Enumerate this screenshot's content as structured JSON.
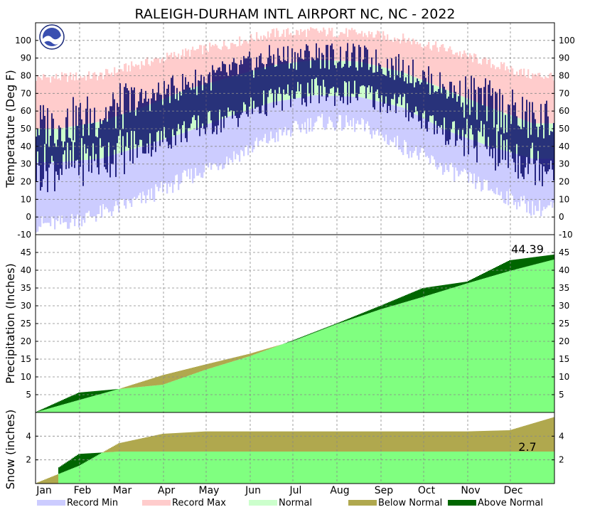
{
  "chart_data": [
    {
      "type": "bar",
      "title": "RALEIGH-DURHAM INTL AIRPORT NC, NC - 2022",
      "ylabel": "Temperature (Deg F)",
      "ylim": [
        -10,
        110
      ],
      "yticks": [
        -10,
        0,
        10,
        20,
        30,
        40,
        50,
        60,
        70,
        80,
        90,
        100
      ],
      "grid": true,
      "x": [
        "Jan",
        "Feb",
        "Mar",
        "Apr",
        "May",
        "Jun",
        "Jul",
        "Aug",
        "Sep",
        "Oct",
        "Nov",
        "Dec"
      ],
      "series": [
        {
          "name": "Record Max",
          "color": "#ffcccc",
          "values": [
            79,
            80,
            87,
            93,
            98,
            104,
            105,
            104,
            101,
            95,
            87,
            80
          ]
        },
        {
          "name": "Normal",
          "color": "#ccffcc",
          "values": [
            50,
            54,
            62,
            72,
            79,
            86,
            89,
            88,
            82,
            72,
            62,
            53
          ]
        },
        {
          "name": "Normal",
          "color": "#ccffcc",
          "values": [
            31,
            33,
            40,
            48,
            57,
            65,
            69,
            68,
            62,
            49,
            40,
            33
          ]
        },
        {
          "name": "Record Min",
          "color": "#ccccff",
          "values": [
            -4,
            2,
            10,
            22,
            33,
            45,
            54,
            52,
            40,
            27,
            16,
            5
          ]
        },
        {
          "name": "observed",
          "color": "#000066",
          "max": [
            52,
            58,
            66,
            75,
            82,
            90,
            92,
            90,
            84,
            73,
            64,
            54
          ],
          "min": [
            28,
            34,
            40,
            49,
            56,
            66,
            71,
            70,
            63,
            48,
            40,
            31
          ]
        }
      ]
    },
    {
      "type": "area",
      "ylabel": "Precipitation (Inches)",
      "ylim": [
        0,
        50
      ],
      "yticks": [
        5,
        10,
        15,
        20,
        25,
        30,
        35,
        40,
        45
      ],
      "annotation": "44.39",
      "x": [
        "Jan",
        "Feb",
        "Mar",
        "Apr",
        "May",
        "Jun",
        "Jul",
        "Aug",
        "Sep",
        "Oct",
        "Nov",
        "Dec"
      ],
      "series": [
        {
          "name": "Observed",
          "color": "#80ff80",
          "values": [
            5.6,
            6.6,
            7.8,
            12.0,
            15.8,
            20.2,
            25.0,
            30.0,
            35.0,
            36.8,
            42.8,
            44.4
          ]
        },
        {
          "name": "Normal",
          "color": "#b0a84e",
          "values": [
            3.5,
            6.6,
            10.5,
            13.5,
            16.5,
            20.0,
            24.8,
            29.0,
            32.5,
            36.3,
            39.8,
            43.0
          ]
        }
      ]
    },
    {
      "type": "area",
      "ylabel": "Snow (inches)",
      "ylim": [
        0,
        6
      ],
      "yticks": [
        2,
        4
      ],
      "annotation": "2.7",
      "x": [
        "Jan",
        "Feb",
        "Mar",
        "Apr",
        "May",
        "Jun",
        "Jul",
        "Aug",
        "Sep",
        "Oct",
        "Nov",
        "Dec"
      ],
      "series": [
        {
          "name": "Observed",
          "color": "#80ff80",
          "values": [
            2.5,
            2.7,
            2.7,
            2.7,
            2.7,
            2.7,
            2.7,
            2.7,
            2.7,
            2.7,
            2.7,
            2.7
          ]
        },
        {
          "name": "Normal",
          "color": "#b0a84e",
          "values": [
            1.5,
            3.4,
            4.2,
            4.4,
            4.4,
            4.4,
            4.4,
            4.4,
            4.4,
            4.4,
            4.5,
            5.6
          ]
        }
      ]
    }
  ],
  "legend": [
    {
      "label": "Record Min",
      "color": "#ccccff"
    },
    {
      "label": "Record Max",
      "color": "#ffcccc"
    },
    {
      "label": "Normal",
      "color": "#ccffcc"
    },
    {
      "label": "Below Normal",
      "color": "#b0a84e"
    },
    {
      "label": "Above Normal",
      "color": "#006600"
    }
  ],
  "logo_text": "NOAA"
}
